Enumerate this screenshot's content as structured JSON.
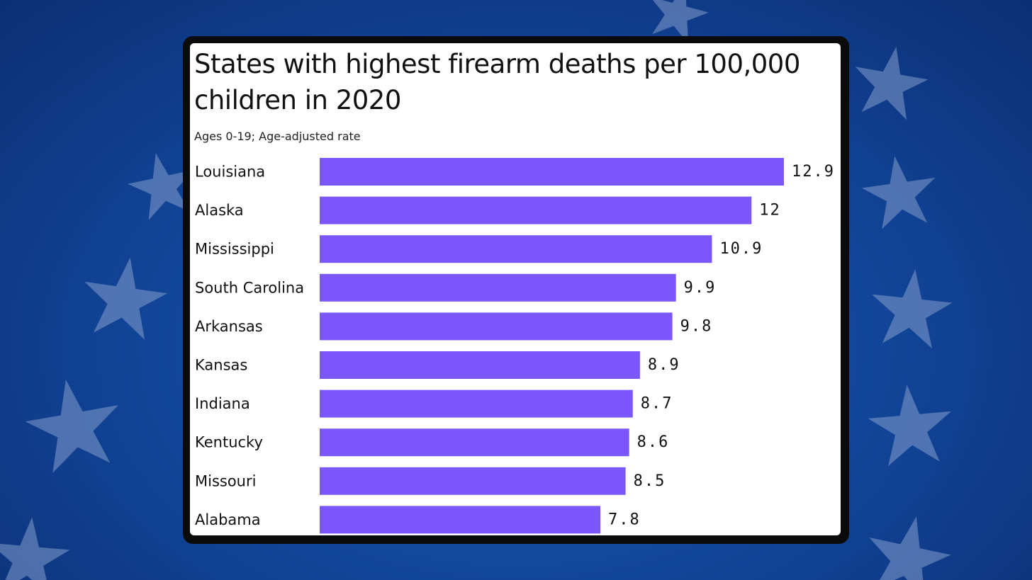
{
  "colors": {
    "bar": "#7b57fb",
    "background": "#114395",
    "star": "#9fb4dc",
    "card": "#ffffff",
    "card_border": "#0b0b0b"
  },
  "chart_data": {
    "type": "bar",
    "orientation": "horizontal",
    "title": "States with highest firearm deaths per 100,000 children in 2020",
    "subtitle": "Ages 0-19; Age-adjusted rate",
    "categories": [
      "Louisiana",
      "Alaska",
      "Mississippi",
      "South Carolina",
      "Arkansas",
      "Kansas",
      "Indiana",
      "Kentucky",
      "Missouri",
      "Alabama"
    ],
    "values": [
      12.9,
      12,
      10.9,
      9.9,
      9.8,
      8.9,
      8.7,
      8.6,
      8.5,
      7.8
    ],
    "value_labels": [
      "12.9",
      "12",
      "10.9",
      "9.9",
      "9.8",
      "8.9",
      "8.7",
      "8.6",
      "8.5",
      "7.8"
    ],
    "xlim": [
      0,
      12.9
    ],
    "grid": false,
    "legend": "none"
  }
}
